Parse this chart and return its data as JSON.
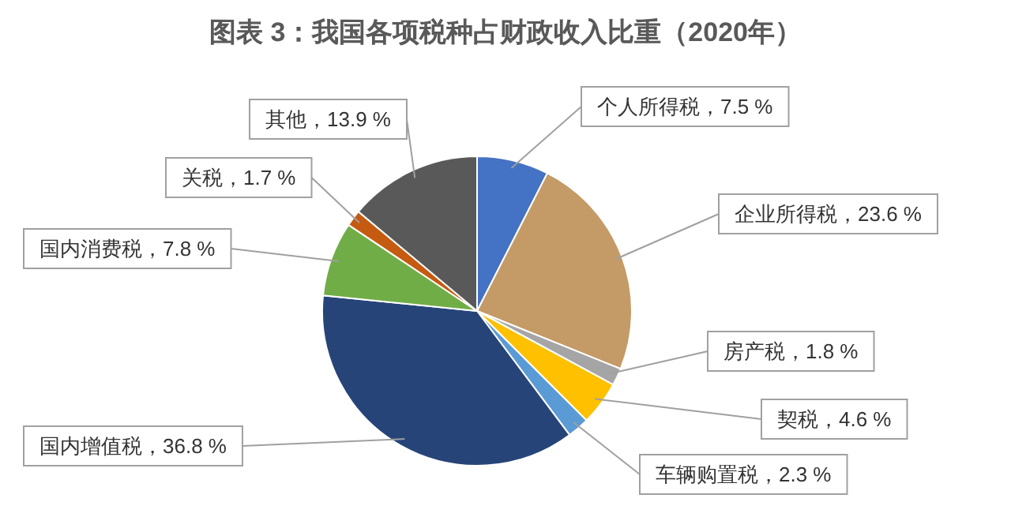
{
  "chart_data": {
    "type": "pie",
    "title": "图表 3：我国各项税种占财政收入比重（2020年）",
    "categories": [
      "个人所得税",
      "企业所得税",
      "房产税",
      "契税",
      "车辆购置税",
      "国内增值税",
      "国内消费税",
      "关税",
      "其他"
    ],
    "values": [
      7.5,
      23.6,
      1.8,
      4.6,
      2.3,
      36.8,
      7.8,
      1.7,
      13.9
    ],
    "value_labels": [
      "7.5 %",
      "23.6 %",
      "1.8 %",
      "4.6 %",
      "2.3 %",
      "36.8 %",
      "7.8 %",
      "1.7 %",
      "13.9 %"
    ],
    "colors": [
      "#4472c4",
      "#c49a66",
      "#a5a5a5",
      "#ffc000",
      "#5b9bd5",
      "#264478",
      "#70ad47",
      "#c55a11",
      "#595959"
    ]
  }
}
